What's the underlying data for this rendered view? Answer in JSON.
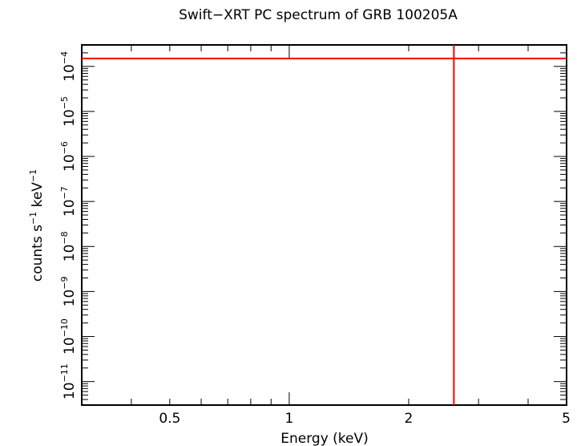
{
  "chart_data": {
    "type": "line",
    "title": "Swift−XRT PC spectrum of GRB 100205A",
    "xlabel": "Energy (keV)",
    "ylabel": {
      "base": "counts s",
      "exp1": "−1",
      "mid": " keV",
      "exp2": "−1"
    },
    "x_scale": "log",
    "y_scale": "log",
    "xlim": [
      0.3,
      5
    ],
    "ylim": [
      3e-12,
      0.0003
    ],
    "x_ticks": [
      {
        "value": 0.5,
        "label": "0.5"
      },
      {
        "value": 1,
        "label": "1"
      },
      {
        "value": 2,
        "label": "2"
      },
      {
        "value": 5,
        "label": "5"
      }
    ],
    "y_ticks": [
      {
        "value": 1e-11,
        "base": "10",
        "exp": "−11"
      },
      {
        "value": 1e-10,
        "base": "10",
        "exp": "−10"
      },
      {
        "value": 1e-09,
        "base": "10",
        "exp": "−9"
      },
      {
        "value": 1e-08,
        "base": "10",
        "exp": "−8"
      },
      {
        "value": 1e-07,
        "base": "10",
        "exp": "−7"
      },
      {
        "value": 1e-06,
        "base": "10",
        "exp": "−6"
      },
      {
        "value": 1e-05,
        "base": "10",
        "exp": "−5"
      },
      {
        "value": 0.0001,
        "base": "10",
        "exp": "−4"
      }
    ],
    "series": [
      {
        "kind": "horizontal-line",
        "y": 0.00015,
        "color": "#ff0000"
      },
      {
        "kind": "vertical-line",
        "x": 2.6,
        "color": "#ff0000"
      }
    ],
    "grid": false,
    "legend": "none",
    "colors": {
      "axes": "#000000",
      "data": "#ff0000"
    }
  }
}
